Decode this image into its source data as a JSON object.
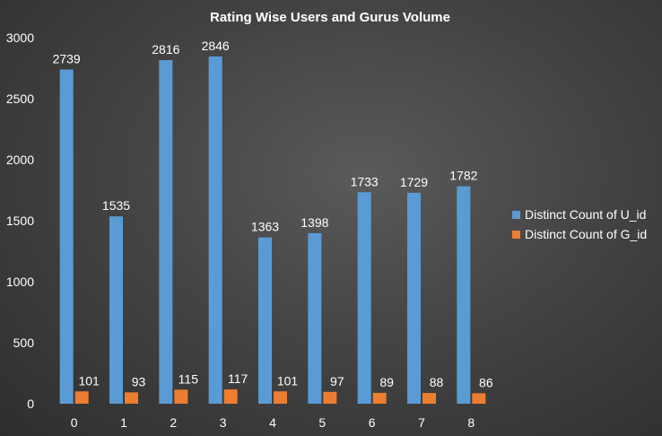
{
  "chart_data": {
    "type": "bar",
    "title": "Rating Wise Users and Gurus Volume",
    "xlabel": "",
    "ylabel": "",
    "categories": [
      "0",
      "1",
      "2",
      "3",
      "4",
      "5",
      "6",
      "7",
      "8"
    ],
    "series": [
      {
        "name": "Distinct Count of U_id",
        "color": "#5b9bd5",
        "values": [
          2739,
          1535,
          2816,
          2846,
          1363,
          1398,
          1733,
          1729,
          1782
        ]
      },
      {
        "name": "Distinct Count of G_id",
        "color": "#ed7d31",
        "values": [
          101,
          93,
          115,
          117,
          101,
          97,
          89,
          88,
          86
        ]
      }
    ],
    "ylim": [
      0,
      3000
    ],
    "yticks": [
      0,
      500,
      1000,
      1500,
      2000,
      2500,
      3000
    ],
    "grid": false,
    "legend_position": "right",
    "data_labels": true
  }
}
